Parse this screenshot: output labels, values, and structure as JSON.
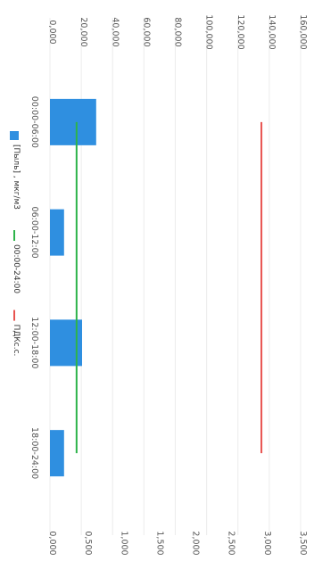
{
  "chart_data": {
    "type": "bar",
    "orientation": "rotated-90-clockwise",
    "categories": [
      "00:00-06:00",
      "06:00-12:00",
      "12:00-18:00",
      "18:00-24:00"
    ],
    "y_left": {
      "ticks": [
        "0,000",
        "20,000",
        "40,000",
        "60,000",
        "80,000",
        "100,000",
        "120,000",
        "140,000",
        "160,000"
      ],
      "range": [
        0,
        160
      ]
    },
    "y_right": {
      "ticks": [
        "0,000",
        "0,500",
        "1,000",
        "1,500",
        "2,000",
        "2,500",
        "3,000",
        "3,500"
      ],
      "range": [
        0,
        3.5
      ]
    },
    "series": [
      {
        "name": "[Пыль] , мкг/м3",
        "kind": "bar",
        "axis": "left",
        "color": "#2f8fe0",
        "values": [
          29.5,
          9.0,
          20.5,
          9.0
        ]
      },
      {
        "name": "00:00-24:00",
        "kind": "line",
        "axis": "left",
        "color": "#2db34a",
        "values": [
          17.0,
          17.0,
          17.0,
          17.0
        ]
      },
      {
        "name": "ПДКс.с.",
        "kind": "line",
        "axis": "left",
        "color": "#e8534f",
        "values": [
          135.0,
          135.0,
          135.0,
          135.0
        ]
      }
    ],
    "grid": true,
    "legend_position": "bottom"
  }
}
